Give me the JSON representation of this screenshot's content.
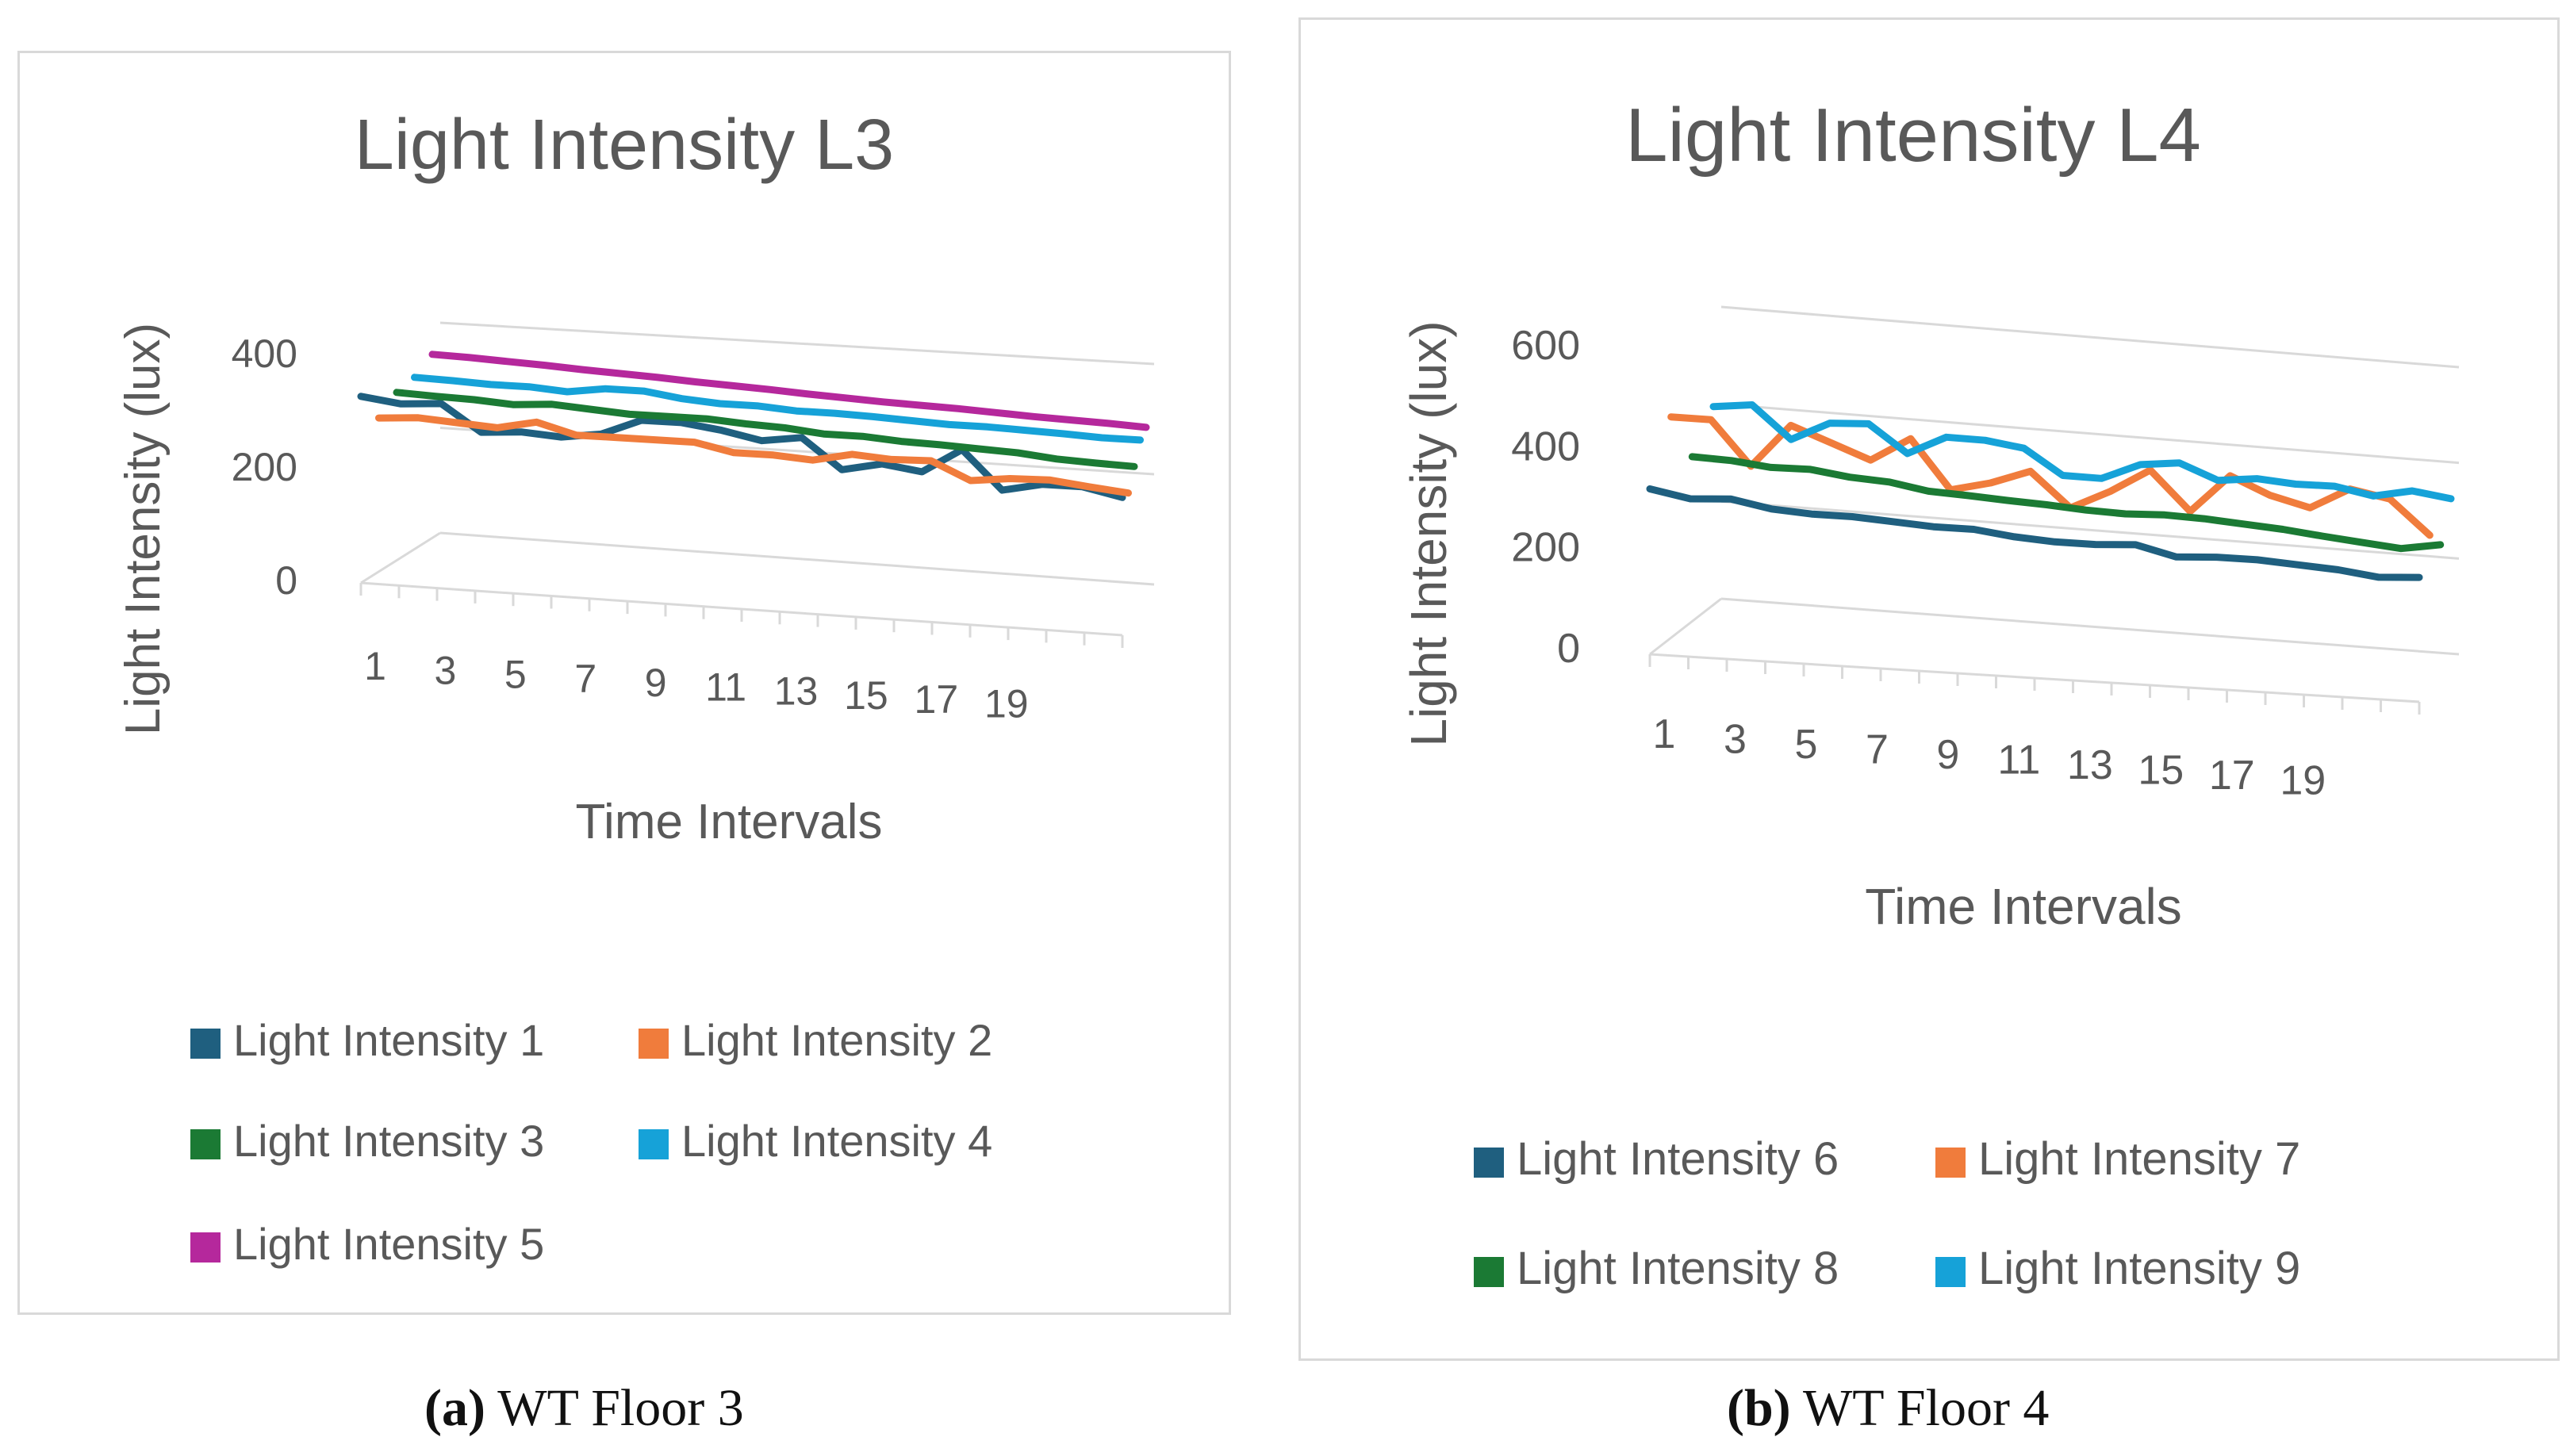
{
  "chart_data": [
    {
      "type": "line",
      "subtype": "3d-line",
      "title": "Light Intensity L3",
      "xlabel": "Time Intervals",
      "ylabel": "Light Intensity (lux)",
      "ylim": [
        0,
        400
      ],
      "yticks": [
        "0",
        "200",
        "400"
      ],
      "xtick_labels": [
        "1",
        "3",
        "5",
        "7",
        "9",
        "11",
        "13",
        "15",
        "17",
        "19"
      ],
      "legend_position": "bottom",
      "grid": true,
      "series": [
        {
          "name": "Light Intensity 1",
          "color": "#1f5f7f",
          "values": [
            355,
            345,
            350,
            300,
            305,
            300,
            310,
            340,
            340,
            330,
            315,
            325,
            270,
            285,
            275,
            320,
            250,
            265,
            265,
            250
          ]
        },
        {
          "name": "Light Intensity 2",
          "color": "#f07c3c",
          "values": [
            290,
            295,
            290,
            285,
            300,
            280,
            280,
            280,
            280,
            265,
            265,
            260,
            275,
            270,
            272,
            240,
            248,
            250,
            242,
            235
          ]
        },
        {
          "name": "Light Intensity 3",
          "color": "#1b7a34",
          "values": [
            315,
            312,
            310,
            305,
            310,
            305,
            300,
            300,
            300,
            295,
            292,
            285,
            285,
            280,
            278,
            275,
            272,
            265,
            262,
            260
          ]
        },
        {
          "name": "Light Intensity 4",
          "color": "#16a2d8",
          "values": [
            320,
            318,
            315,
            315,
            310,
            320,
            320,
            310,
            305,
            305,
            300,
            300,
            298,
            295,
            292,
            292,
            290,
            288,
            285,
            285
          ]
        },
        {
          "name": "Light Intensity 5",
          "color": "#b5289c",
          "values": [
            340,
            338,
            335,
            332,
            328,
            325,
            322,
            318,
            315,
            312,
            308,
            305,
            302,
            300,
            298,
            295,
            292,
            290,
            288,
            285
          ]
        }
      ]
    },
    {
      "type": "line",
      "subtype": "3d-line",
      "title": "Light Intensity L4",
      "xlabel": "Time Intervals",
      "ylabel": "Light Intensity (lux)",
      "ylim": [
        0,
        600
      ],
      "yticks": [
        "0",
        "200",
        "400",
        "600"
      ],
      "xtick_labels": [
        "1",
        "3",
        "5",
        "7",
        "9",
        "11",
        "13",
        "15",
        "17",
        "19"
      ],
      "legend_position": "bottom",
      "grid": true,
      "series": [
        {
          "name": "Light Intensity 6",
          "color": "#1f5f7f",
          "values": [
            340,
            325,
            330,
            315,
            310,
            310,
            305,
            300,
            300,
            290,
            285,
            285,
            290,
            270,
            275,
            275,
            270,
            265,
            255,
            260
          ]
        },
        {
          "name": "Light Intensity 7",
          "color": "#f07c3c",
          "values": [
            450,
            450,
            360,
            450,
            420,
            390,
            440,
            340,
            360,
            390,
            320,
            360,
            410,
            330,
            410,
            375,
            355,
            400,
            385,
            315
          ]
        },
        {
          "name": "Light Intensity 8",
          "color": "#1b7a34",
          "values": [
            330,
            328,
            320,
            322,
            312,
            308,
            295,
            292,
            288,
            285,
            280,
            278,
            282,
            280,
            275,
            270,
            262,
            255,
            248,
            262
          ]
        },
        {
          "name": "Light Intensity 9",
          "color": "#16a2d8",
          "values": [
            395,
            405,
            340,
            380,
            385,
            330,
            370,
            370,
            360,
            310,
            310,
            345,
            355,
            325,
            335,
            330,
            332,
            318,
            335,
            325
          ]
        }
      ]
    }
  ],
  "captions": [
    {
      "label": "(a)",
      "text": "WT Floor 3"
    },
    {
      "label": "(b)",
      "text": "WT Floor 4"
    }
  ]
}
